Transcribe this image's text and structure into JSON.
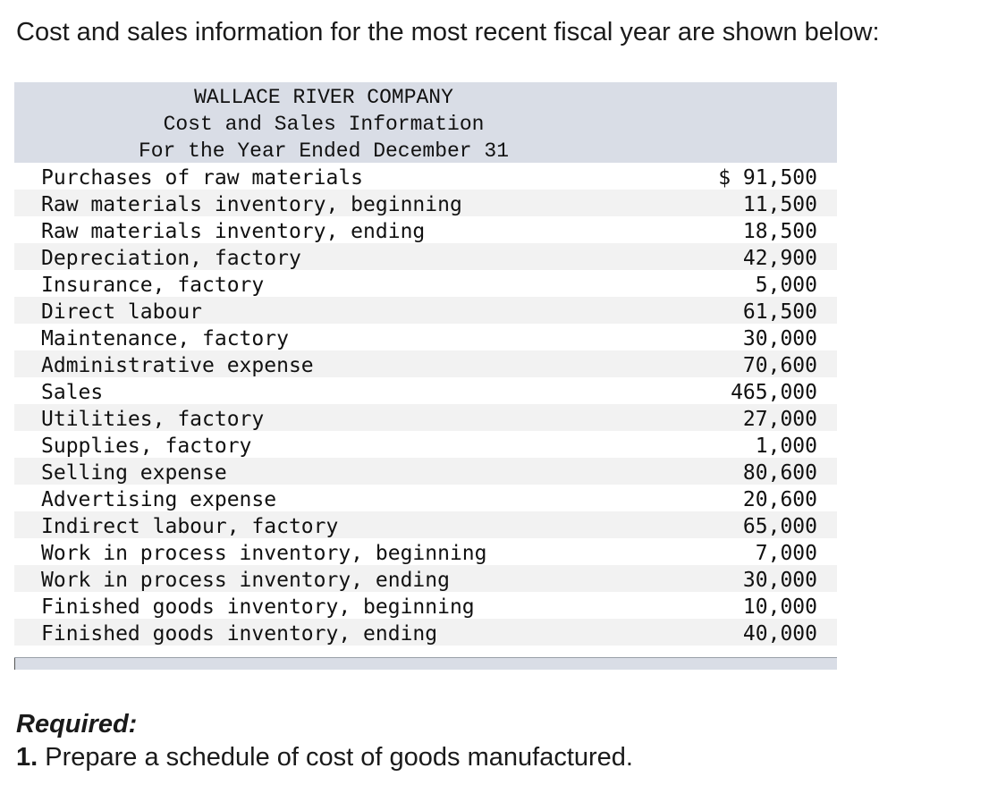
{
  "intro": "Cost and sales information for the most recent fiscal year are shown below:",
  "table": {
    "company": "WALLACE RIVER COMPANY",
    "title": "Cost and Sales Information",
    "period": "For the Year Ended December 31",
    "rows": [
      {
        "label": "Purchases of raw materials",
        "amount": "$ 91,500"
      },
      {
        "label": "Raw materials inventory, beginning",
        "amount": "11,500"
      },
      {
        "label": "Raw materials inventory, ending",
        "amount": "18,500"
      },
      {
        "label": "Depreciation, factory",
        "amount": "42,900"
      },
      {
        "label": "Insurance, factory",
        "amount": "5,000"
      },
      {
        "label": "Direct labour",
        "amount": "61,500"
      },
      {
        "label": "Maintenance, factory",
        "amount": "30,000"
      },
      {
        "label": "Administrative expense",
        "amount": "70,600"
      },
      {
        "label": "Sales",
        "amount": "465,000"
      },
      {
        "label": "Utilities, factory",
        "amount": "27,000"
      },
      {
        "label": "Supplies, factory",
        "amount": "1,000"
      },
      {
        "label": "Selling expense",
        "amount": "80,600"
      },
      {
        "label": "Advertising expense",
        "amount": "20,600"
      },
      {
        "label": "Indirect labour, factory",
        "amount": "65,000"
      },
      {
        "label": "Work in process inventory, beginning",
        "amount": "7,000"
      },
      {
        "label": "Work in process inventory, ending",
        "amount": "30,000"
      },
      {
        "label": "Finished goods inventory, beginning",
        "amount": "10,000"
      },
      {
        "label": "Finished goods inventory, ending",
        "amount": "40,000"
      }
    ]
  },
  "required": {
    "heading": "Required:",
    "number": "1.",
    "text": "Prepare a schedule of cost of goods manufactured."
  }
}
